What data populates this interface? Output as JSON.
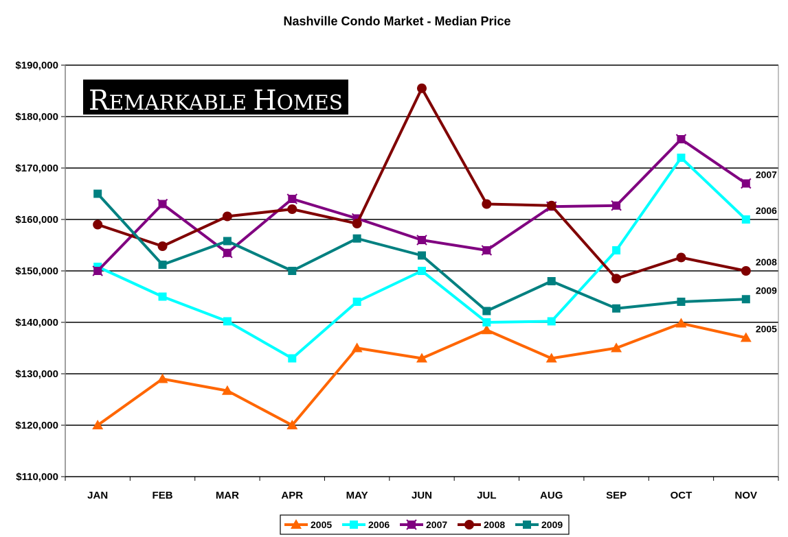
{
  "chart_data": {
    "type": "line",
    "title": "Nashville Condo Market - Median Price",
    "xlabel": "",
    "ylabel": "",
    "categories": [
      "JAN",
      "FEB",
      "MAR",
      "APR",
      "MAY",
      "JUN",
      "JUL",
      "AUG",
      "SEP",
      "OCT",
      "NOV"
    ],
    "ylim": [
      110000,
      190000
    ],
    "ytick_step": 10000,
    "ytick_labels": [
      "$110,000",
      "$120,000",
      "$130,000",
      "$140,000",
      "$150,000",
      "$160,000",
      "$170,000",
      "$180,000",
      "$190,000"
    ],
    "grid": "horizontal",
    "legend_position": "bottom",
    "series": [
      {
        "name": "2005",
        "color": "#ff6600",
        "marker": "triangle",
        "end_label": "2005",
        "values": [
          120000,
          129000,
          126700,
          120000,
          135000,
          133000,
          138500,
          133000,
          135000,
          139800,
          137000
        ]
      },
      {
        "name": "2006",
        "color": "#00ffff",
        "marker": "square",
        "end_label": "2006",
        "values": [
          150800,
          145000,
          140200,
          133000,
          144000,
          150000,
          140000,
          140200,
          154000,
          172000,
          160000
        ]
      },
      {
        "name": "2007",
        "color": "#800080",
        "marker": "star",
        "end_label": "2007",
        "values": [
          150000,
          163000,
          153500,
          164000,
          160200,
          156000,
          154000,
          162500,
          162700,
          175600,
          167000
        ]
      },
      {
        "name": "2008",
        "color": "#800000",
        "marker": "circle",
        "end_label": "2008",
        "values": [
          159000,
          154800,
          160600,
          162000,
          159200,
          185500,
          163000,
          162700,
          148500,
          152600,
          150000
        ]
      },
      {
        "name": "2009",
        "color": "#008080",
        "marker": "square",
        "end_label": "2009",
        "values": [
          165000,
          151200,
          155800,
          150000,
          156300,
          153000,
          142200,
          148000,
          142700,
          144000,
          144500
        ]
      }
    ]
  },
  "logo": {
    "text_parts": [
      "R",
      "EMARKABLE ",
      "H",
      "OMES"
    ],
    "bg": "#000000",
    "fg": "#ffffff"
  }
}
